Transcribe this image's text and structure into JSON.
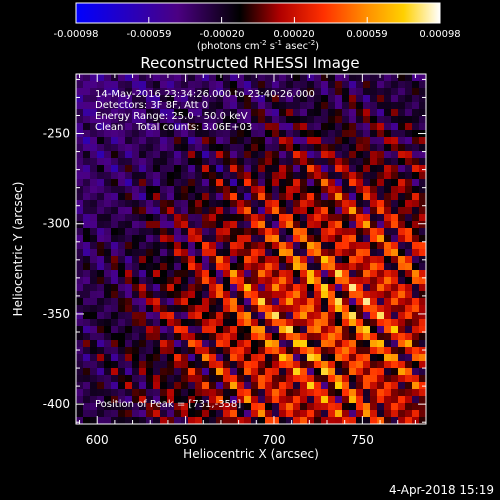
{
  "chart_data": {
    "type": "heatmap",
    "title": "Reconstructed RHESSI Image",
    "xlabel": "Heliocentric X (arcsec)",
    "ylabel": "Heliocentric Y (arcsec)",
    "xlim": [
      588,
      786
    ],
    "ylim": [
      -411,
      -217
    ],
    "x_ticks": [
      600,
      650,
      700,
      750
    ],
    "y_ticks": [
      -250,
      -300,
      -350,
      -400
    ],
    "colorbar": {
      "ticks": [
        "-0.00098",
        "-0.00059",
        "-0.00020",
        "0.00020",
        "0.00059",
        "0.00098"
      ],
      "range": [
        -0.00098,
        0.00098
      ],
      "label_main": "(photons cm",
      "label_exp1": "-2",
      "label_mid1": " s",
      "label_exp2": "-1",
      "label_mid2": " asec",
      "label_exp3": "-2",
      "label_end": ")",
      "colors": [
        "#0000ff",
        "#4b0082",
        "#000000",
        "#b00000",
        "#ff3000",
        "#ff9000",
        "#ffd000",
        "#ffffff"
      ]
    },
    "annotations": {
      "line1": "14-May-2016 23:34:26.000 to 23:40:26.000",
      "line2": "Detectors: 3F 8F, Att 0",
      "line3": "Energy Range: 25.0 - 50.0 keV",
      "line4": "Clean    Total counts: 3.06E+03",
      "peak": "Position of Peak = [731,-358]"
    },
    "peak": [
      731,
      -358
    ],
    "source_center": [
      725,
      -350
    ],
    "grid": false
  },
  "footer": {
    "date": "4-Apr-2018 15:19"
  }
}
